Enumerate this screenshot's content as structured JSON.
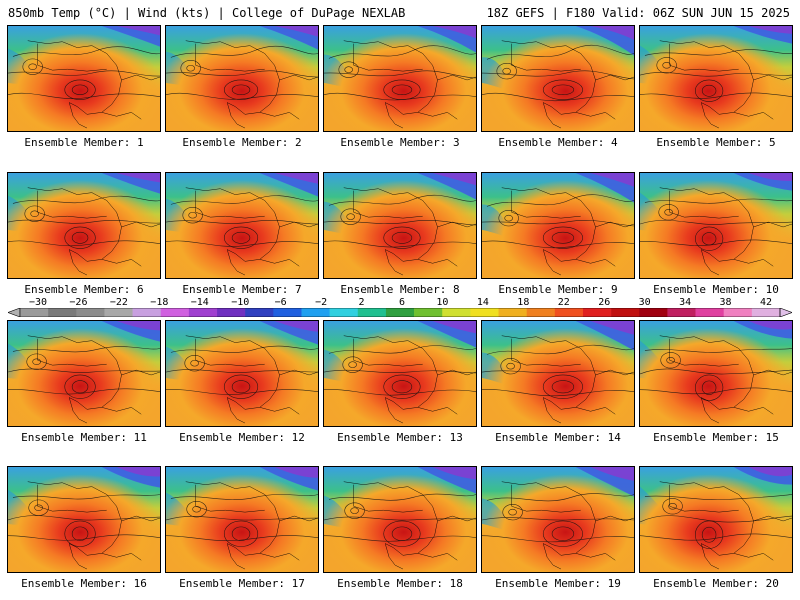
{
  "header": {
    "left": "850mb Temp (°C) | Wind (kts) | College of DuPage NEXLAB",
    "right": "18Z GEFS | F180 Valid: 06Z SUN JUN 15 2025"
  },
  "panels": [
    {
      "label": "Ensemble Member: 1"
    },
    {
      "label": "Ensemble Member: 2"
    },
    {
      "label": "Ensemble Member: 3"
    },
    {
      "label": "Ensemble Member: 4"
    },
    {
      "label": "Ensemble Member: 5"
    },
    {
      "label": "Ensemble Member: 6"
    },
    {
      "label": "Ensemble Member: 7"
    },
    {
      "label": "Ensemble Member: 8"
    },
    {
      "label": "Ensemble Member: 9"
    },
    {
      "label": "Ensemble Member: 10"
    },
    {
      "label": "Ensemble Member: 11"
    },
    {
      "label": "Ensemble Member: 12"
    },
    {
      "label": "Ensemble Member: 13"
    },
    {
      "label": "Ensemble Member: 14"
    },
    {
      "label": "Ensemble Member: 15"
    },
    {
      "label": "Ensemble Member: 16"
    },
    {
      "label": "Ensemble Member: 17"
    },
    {
      "label": "Ensemble Member: 18"
    },
    {
      "label": "Ensemble Member: 19"
    },
    {
      "label": "Ensemble Member: 20"
    }
  ],
  "colorbar": {
    "ticks": [
      "−30",
      "−26",
      "−22",
      "−18",
      "−14",
      "−10",
      "−6",
      "−2",
      "2",
      "6",
      "10",
      "14",
      "18",
      "22",
      "26",
      "30",
      "34",
      "38",
      "42"
    ],
    "colors": [
      "#9a9a9a",
      "#7a7a7a",
      "#8c8c8c",
      "#a8a8a8",
      "#c8a0e0",
      "#d060e0",
      "#a040d0",
      "#7030c0",
      "#3040c0",
      "#2060e0",
      "#20a0f0",
      "#30d0e0",
      "#20c090",
      "#30a040",
      "#70c030",
      "#d0e030",
      "#f0e020",
      "#f0b020",
      "#f08020",
      "#f05020",
      "#e02020",
      "#c01010",
      "#a00010",
      "#c02060",
      "#e040a0",
      "#f080c0",
      "#e0b0e0"
    ]
  }
}
